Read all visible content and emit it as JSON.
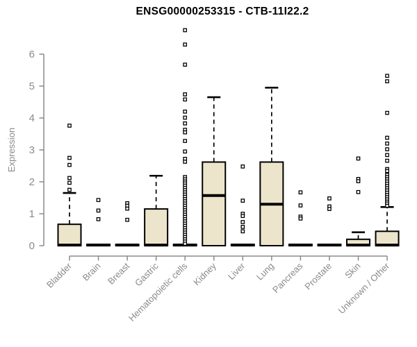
{
  "chart_data": {
    "type": "boxplot",
    "title": "ENSG00000253315 - CTB-11I22.2",
    "ylabel": "Expression",
    "xlabel": "",
    "ylim": [
      0,
      6.9
    ],
    "yticks": [
      0,
      1,
      2,
      3,
      4,
      5,
      6
    ],
    "grid": false,
    "legend": "none",
    "box_fill_color": "#ECE5CB",
    "box_line_color": "#000000",
    "axis_color": "#8a8a8a",
    "categories": [
      "Bladder",
      "Brain",
      "Breast",
      "Gastric",
      "Hematopoietic cells",
      "Kidney",
      "Liver",
      "Lung",
      "Pancreas",
      "Prostate",
      "Skin",
      "Unknown / Other"
    ],
    "series": [
      {
        "category": "Bladder",
        "q1": 0,
        "median": 0.02,
        "q3": 0.67,
        "whisker_low": 0,
        "whisker_high": 1.65,
        "outliers": [
          3.76,
          2.75,
          2.53,
          2.12,
          1.97,
          1.75
        ]
      },
      {
        "category": "Brain",
        "q1": 0,
        "median": 0.02,
        "q3": 0.04,
        "whisker_low": 0,
        "whisker_high": 0.04,
        "outliers": [
          1.43,
          1.1,
          0.83
        ]
      },
      {
        "category": "Breast",
        "q1": 0,
        "median": 0.02,
        "q3": 0.04,
        "whisker_low": 0,
        "whisker_high": 0.04,
        "outliers": [
          1.33,
          1.25,
          1.16,
          0.81
        ]
      },
      {
        "category": "Gastric",
        "q1": 0,
        "median": 0.02,
        "q3": 1.15,
        "whisker_low": 0,
        "whisker_high": 2.19,
        "outliers": []
      },
      {
        "category": "Hematopoietic cells",
        "q1": 0,
        "median": 0.02,
        "q3": 0.04,
        "whisker_low": 0,
        "whisker_high": 0.04,
        "outliers": [
          6.75,
          6.3,
          5.67,
          4.74,
          4.58,
          4.2,
          4.01,
          3.83,
          3.63,
          3.55,
          3.28,
          2.95,
          2.72,
          2.63,
          2.15,
          2.08,
          2.01,
          1.95,
          1.88,
          1.81,
          1.74,
          1.67,
          1.6,
          1.53,
          1.46,
          1.39,
          1.32,
          1.25,
          1.18,
          1.11,
          1.04,
          0.97,
          0.9,
          0.83,
          0.76,
          0.69,
          0.62,
          0.55,
          0.48,
          0.41,
          0.34,
          0.27,
          0.2,
          0.13,
          0.06
        ]
      },
      {
        "category": "Kidney",
        "q1": 0,
        "median": 1.57,
        "q3": 2.62,
        "whisker_low": 0,
        "whisker_high": 4.65,
        "outliers": []
      },
      {
        "category": "Liver",
        "q1": 0,
        "median": 0.02,
        "q3": 0.04,
        "whisker_low": 0,
        "whisker_high": 0.04,
        "outliers": [
          2.48,
          1.41,
          1.0,
          0.93,
          0.74,
          0.59,
          0.45
        ]
      },
      {
        "category": "Lung",
        "q1": 0,
        "median": 1.3,
        "q3": 2.62,
        "whisker_low": 0,
        "whisker_high": 4.95,
        "outliers": []
      },
      {
        "category": "Pancreas",
        "q1": 0,
        "median": 0.02,
        "q3": 0.04,
        "whisker_low": 0,
        "whisker_high": 0.04,
        "outliers": [
          1.67,
          1.26,
          0.91,
          0.85
        ]
      },
      {
        "category": "Prostate",
        "q1": 0,
        "median": 0.02,
        "q3": 0.04,
        "whisker_low": 0,
        "whisker_high": 0.04,
        "outliers": [
          1.48,
          1.23,
          1.15
        ]
      },
      {
        "category": "Skin",
        "q1": 0,
        "median": 0.02,
        "q3": 0.2,
        "whisker_low": 0,
        "whisker_high": 0.42,
        "outliers": [
          2.73,
          2.09,
          2.02,
          1.68
        ]
      },
      {
        "category": "Unknown / Other",
        "q1": 0,
        "median": 0.02,
        "q3": 0.45,
        "whisker_low": 0,
        "whisker_high": 1.21,
        "outliers": [
          5.32,
          5.15,
          4.16,
          3.38,
          3.2,
          3.02,
          2.84,
          2.66,
          2.4,
          2.34,
          2.22,
          2.15,
          2.08,
          2.01,
          1.94,
          1.87,
          1.8,
          1.73,
          1.66,
          1.59,
          1.52,
          1.45,
          1.38,
          1.32,
          1.25
        ]
      }
    ]
  }
}
